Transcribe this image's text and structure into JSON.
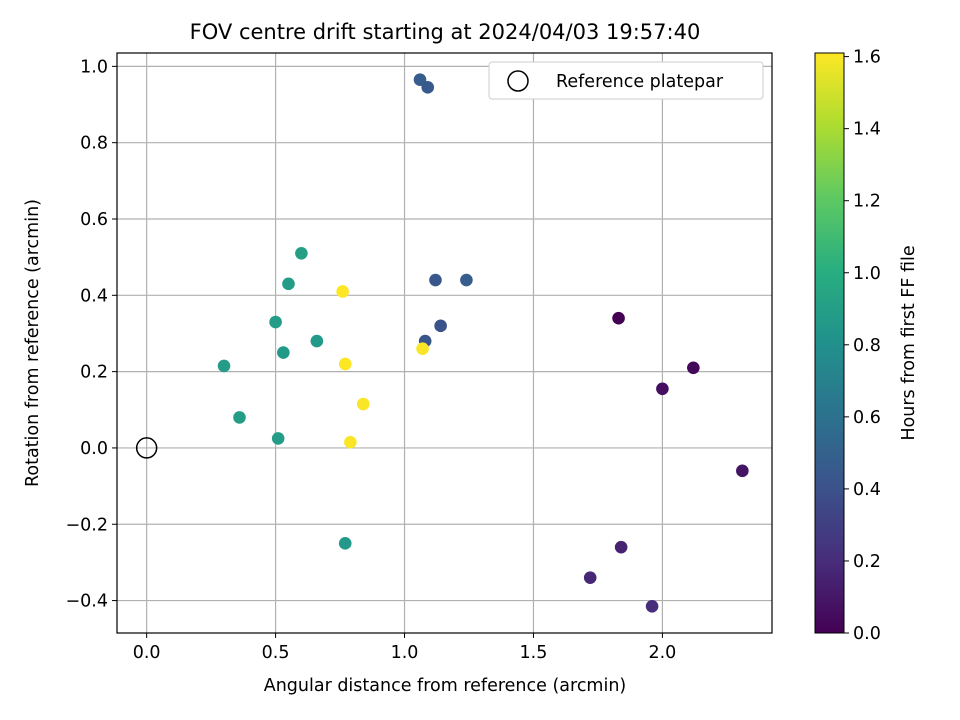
{
  "chart_data": {
    "type": "scatter",
    "title": "FOV centre drift starting at 2024/04/03 19:57:40",
    "xlabel": "Angular distance from reference (arcmin)",
    "ylabel": "Rotation from reference (arcmin)",
    "xlim": [
      -0.115,
      2.425
    ],
    "ylim": [
      -0.485,
      1.035
    ],
    "xticks": [
      0.0,
      0.5,
      1.0,
      1.5,
      2.0
    ],
    "xtick_labels": [
      "0.0",
      "0.5",
      "1.0",
      "1.5",
      "2.0"
    ],
    "yticks": [
      -0.4,
      -0.2,
      0.0,
      0.2,
      0.4,
      0.6,
      0.8,
      1.0
    ],
    "ytick_labels": [
      "−0.4",
      "−0.2",
      "0.0",
      "0.2",
      "0.4",
      "0.6",
      "0.8",
      "1.0"
    ],
    "grid": true,
    "legend_placement": "upper right",
    "reference": {
      "label": "Reference platepar",
      "x": 0.0,
      "y": 0.0
    },
    "colormap": "viridis",
    "colorbar": {
      "label": "Hours from first FF file",
      "range": [
        0.0,
        1.61
      ],
      "ticks": [
        0.0,
        0.2,
        0.4,
        0.6,
        0.8,
        1.0,
        1.2,
        1.4,
        1.6
      ],
      "tick_labels": [
        "0.0",
        "0.2",
        "0.4",
        "0.6",
        "0.8",
        "1.0",
        "1.2",
        "1.4",
        "1.6"
      ]
    },
    "points": [
      {
        "x": 1.83,
        "y": 0.34,
        "hours": 0.0
      },
      {
        "x": 2.12,
        "y": 0.21,
        "hours": 0.03
      },
      {
        "x": 2.0,
        "y": 0.155,
        "hours": 0.06
      },
      {
        "x": 2.31,
        "y": -0.06,
        "hours": 0.09
      },
      {
        "x": 1.84,
        "y": -0.26,
        "hours": 0.15
      },
      {
        "x": 1.72,
        "y": -0.34,
        "hours": 0.18
      },
      {
        "x": 1.96,
        "y": -0.415,
        "hours": 0.2
      },
      {
        "x": 1.06,
        "y": 0.965,
        "hours": 0.47
      },
      {
        "x": 1.09,
        "y": 0.945,
        "hours": 0.45
      },
      {
        "x": 1.12,
        "y": 0.44,
        "hours": 0.44
      },
      {
        "x": 1.24,
        "y": 0.44,
        "hours": 0.47
      },
      {
        "x": 1.14,
        "y": 0.32,
        "hours": 0.41
      },
      {
        "x": 1.08,
        "y": 0.28,
        "hours": 0.43
      },
      {
        "x": 0.6,
        "y": 0.51,
        "hours": 0.9
      },
      {
        "x": 0.55,
        "y": 0.43,
        "hours": 0.88
      },
      {
        "x": 0.5,
        "y": 0.33,
        "hours": 0.88
      },
      {
        "x": 0.53,
        "y": 0.25,
        "hours": 0.87
      },
      {
        "x": 0.66,
        "y": 0.28,
        "hours": 0.86
      },
      {
        "x": 0.3,
        "y": 0.215,
        "hours": 0.88
      },
      {
        "x": 0.36,
        "y": 0.08,
        "hours": 0.89
      },
      {
        "x": 0.51,
        "y": 0.025,
        "hours": 0.88
      },
      {
        "x": 0.77,
        "y": -0.25,
        "hours": 0.86
      },
      {
        "x": 0.76,
        "y": 0.41,
        "hours": 1.61
      },
      {
        "x": 0.77,
        "y": 0.22,
        "hours": 1.61
      },
      {
        "x": 1.07,
        "y": 0.26,
        "hours": 1.6
      },
      {
        "x": 0.84,
        "y": 0.115,
        "hours": 1.6
      },
      {
        "x": 0.79,
        "y": 0.015,
        "hours": 1.6
      }
    ]
  }
}
